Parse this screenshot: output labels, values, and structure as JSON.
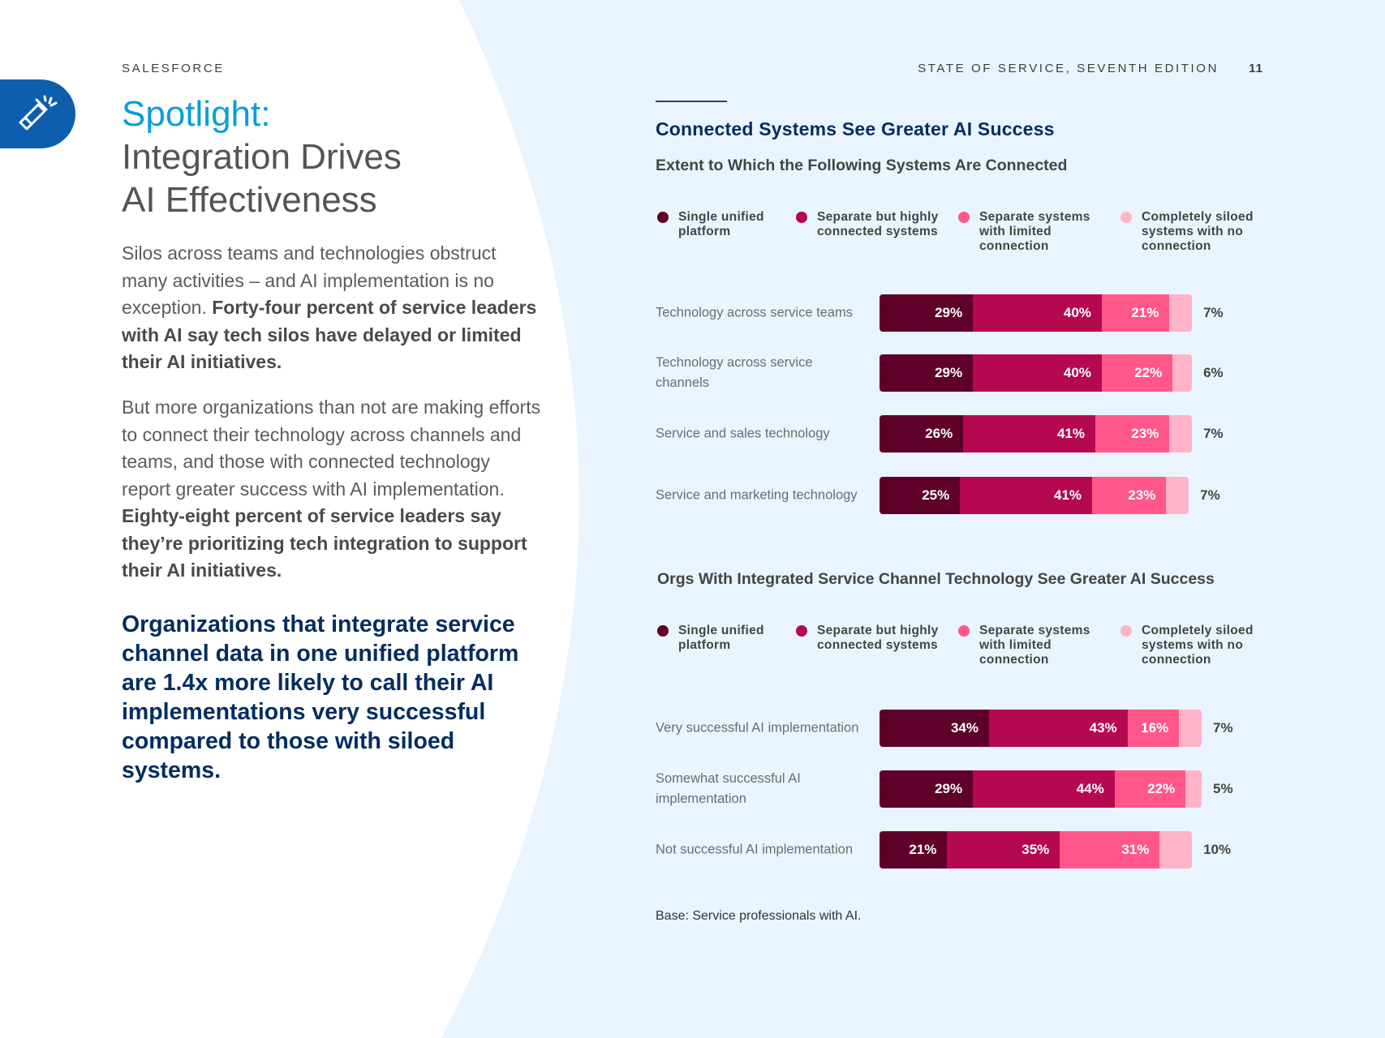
{
  "header": {
    "brand": "SALESFORCE",
    "publication": "STATE OF SERVICE, SEVENTH EDITION",
    "page_number": "11"
  },
  "badge_icon": "flashlight-icon",
  "title": {
    "spotlight": "Spotlight:",
    "line1": "Integration Drives",
    "line2": "AI Effectiveness"
  },
  "paragraph1": {
    "text": "Silos across teams and technologies obstruct many activities – and AI implementation is no exception. ",
    "bold": "Forty-four percent of service leaders with AI say tech silos have delayed or limited their AI initiatives."
  },
  "paragraph2": {
    "text": "But more organizations than not are making efforts to connect their technology across channels and teams, and those with connected technology report greater success with AI implementation. ",
    "bold": "Eighty-eight percent of service leaders say they’re prioritizing tech integration to support their AI initiatives."
  },
  "callout": "Organizations that integrate service channel data in one unified platform are 1.4x more likely to call their AI implementations very successful compared to those with siloed systems.",
  "colors": {
    "single": "#5e0028",
    "separate": "#b5094f",
    "limited": "#ff5789",
    "siloed": "#ffb3c8",
    "accent": "#089fd9",
    "navy": "#032d60",
    "badge": "#0d5fad"
  },
  "chart_data": [
    {
      "type": "bar",
      "stacked": true,
      "orientation": "horizontal",
      "title": "Connected Systems See Greater AI Success",
      "subtitle": "Extent to Which the Following Systems Are Connected",
      "legend": [
        "Single unified platform",
        "Separate but highly connected systems",
        "Separate systems with limited connection",
        "Completely siloed systems with no connection"
      ],
      "legend_placement": "top",
      "categories": [
        "Technology across service teams",
        "Technology across service channels",
        "Service and sales technology",
        "Service and marketing technology"
      ],
      "series": [
        {
          "name": "Single unified platform",
          "values": [
            29,
            29,
            26,
            25
          ]
        },
        {
          "name": "Separate but highly connected systems",
          "values": [
            40,
            40,
            41,
            41
          ]
        },
        {
          "name": "Separate systems with limited connection",
          "values": [
            21,
            22,
            23,
            23
          ]
        },
        {
          "name": "Completely siloed systems with no connection",
          "values": [
            7,
            6,
            7,
            7
          ]
        }
      ]
    },
    {
      "type": "bar",
      "stacked": true,
      "orientation": "horizontal",
      "title": "Orgs With Integrated Service Channel Technology See Greater AI Success",
      "legend": [
        "Single unified platform",
        "Separate but highly connected systems",
        "Separate systems with limited connection",
        "Completely siloed systems with no connection"
      ],
      "legend_placement": "top",
      "categories": [
        "Very successful AI implementation",
        "Somewhat successful AI implementation",
        "Not successful AI implementation"
      ],
      "series": [
        {
          "name": "Single unified platform",
          "values": [
            34,
            29,
            21
          ]
        },
        {
          "name": "Separate but highly connected systems",
          "values": [
            43,
            44,
            35
          ]
        },
        {
          "name": "Separate systems with limited connection",
          "values": [
            16,
            22,
            31
          ]
        },
        {
          "name": "Completely siloed systems with no connection",
          "values": [
            7,
            5,
            10
          ]
        }
      ]
    }
  ],
  "footnote": "Base: Service professionals with AI."
}
